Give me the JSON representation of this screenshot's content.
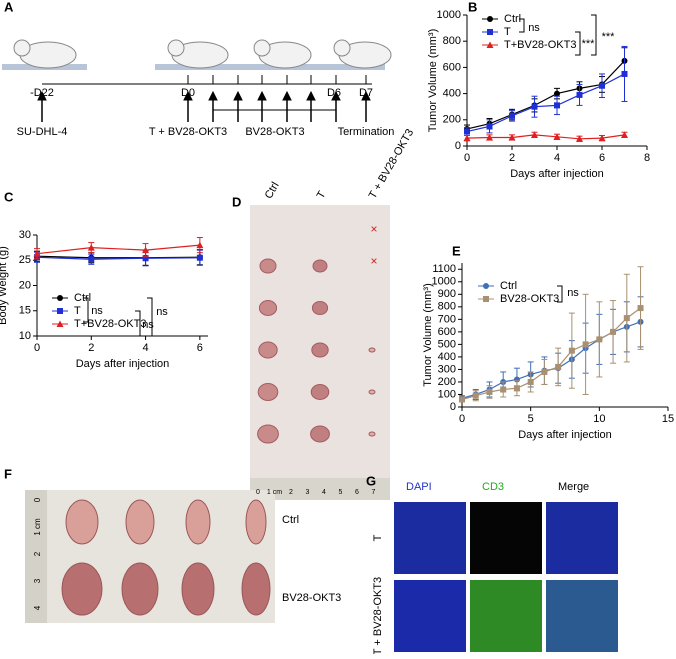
{
  "panel_labels": [
    "A",
    "B",
    "C",
    "D",
    "E",
    "F",
    "G"
  ],
  "schedule": {
    "days": [
      "-D22",
      "D0",
      "D6",
      "D7"
    ],
    "events": [
      "SU-DHL-4",
      "T + BV28-OKT3",
      "BV28-OKT3",
      "Termination"
    ]
  },
  "chart_data": [
    {
      "type": "line",
      "x_label": "Days after injection",
      "y_label": "Tumor Volume (mm³)",
      "xlim": [
        0,
        8
      ],
      "xticks": [
        0,
        2,
        4,
        6,
        8
      ],
      "ylim": [
        0,
        1000
      ],
      "yticks": [
        0,
        200,
        400,
        600,
        800,
        1000
      ],
      "x": [
        0,
        1,
        2,
        3,
        4,
        5,
        6,
        7
      ],
      "series": [
        {
          "name": "Ctrl",
          "color": "#000000",
          "marker": "circle",
          "values": [
            130,
            170,
            240,
            310,
            400,
            440,
            470,
            650
          ],
          "errors": [
            30,
            40,
            40,
            50,
            40,
            50,
            60,
            100
          ]
        },
        {
          "name": "T",
          "color": "#1f2fd6",
          "marker": "square",
          "values": [
            110,
            150,
            230,
            300,
            310,
            390,
            460,
            550
          ],
          "errors": [
            30,
            50,
            40,
            80,
            70,
            80,
            90,
            210
          ]
        },
        {
          "name": "T+BV28-OKT3",
          "color": "#e02020",
          "marker": "triangle",
          "values": [
            60,
            65,
            65,
            85,
            70,
            55,
            60,
            85
          ],
          "errors": [
            20,
            20,
            20,
            20,
            20,
            20,
            20,
            20
          ]
        }
      ],
      "annotations": [
        "ns",
        "***",
        "***"
      ]
    },
    {
      "type": "line",
      "x_label": "Days after injection",
      "y_label": "Body Weight (g)",
      "xlim": [
        0,
        6.3
      ],
      "xticks": [
        0,
        2,
        4,
        6
      ],
      "ylim": [
        10,
        30
      ],
      "yticks": [
        10,
        15,
        20,
        25,
        30
      ],
      "x": [
        0,
        2,
        4,
        6
      ],
      "series": [
        {
          "name": "Ctrl",
          "color": "#000000",
          "marker": "circle",
          "values": [
            25.8,
            25.5,
            25.5,
            25.6
          ],
          "errors": [
            1,
            1,
            1.5,
            1.5
          ]
        },
        {
          "name": "T",
          "color": "#1f2fd6",
          "marker": "square",
          "values": [
            25.6,
            25.2,
            25.4,
            25.5
          ],
          "errors": [
            1,
            1,
            1.5,
            1.5
          ]
        },
        {
          "name": "T+BV28-OKT3",
          "color": "#e02020",
          "marker": "triangle",
          "values": [
            26.3,
            27.5,
            27.0,
            28.0
          ],
          "errors": [
            1,
            1,
            1.3,
            1.5
          ]
        }
      ],
      "annotations": [
        "ns",
        "ns",
        "ns"
      ]
    },
    {
      "type": "line",
      "x_label": "Days after injection",
      "y_label": "Tumor Volume (mm³)",
      "xlim": [
        0,
        15
      ],
      "xticks": [
        0,
        5,
        10,
        15
      ],
      "ylim": [
        0,
        1150
      ],
      "yticks": [
        0,
        100,
        200,
        300,
        400,
        500,
        600,
        700,
        800,
        900,
        1000,
        1100
      ],
      "x": [
        0,
        1,
        2,
        3,
        4,
        5,
        6,
        7,
        8,
        9,
        10,
        11,
        12,
        13
      ],
      "series": [
        {
          "name": "Ctrl",
          "color": "#3f6fb8",
          "marker": "circle",
          "values": [
            70,
            100,
            140,
            200,
            220,
            260,
            290,
            310,
            380,
            470,
            540,
            600,
            640,
            680
          ],
          "errors": [
            20,
            40,
            60,
            80,
            90,
            100,
            110,
            120,
            150,
            200,
            200,
            180,
            200,
            200
          ]
        },
        {
          "name": "BV28-OKT3",
          "color": "#a89070",
          "marker": "square",
          "values": [
            60,
            90,
            120,
            140,
            150,
            200,
            280,
            320,
            450,
            500,
            540,
            600,
            710,
            790
          ],
          "errors": [
            20,
            40,
            50,
            60,
            60,
            80,
            100,
            150,
            300,
            400,
            300,
            250,
            350,
            330
          ]
        }
      ],
      "annotations": [
        "ns"
      ]
    }
  ],
  "photo_d": {
    "columns": [
      "Ctrl",
      "T",
      "T + BV28-OKT3"
    ],
    "ruler": [
      "0",
      "1 cm",
      "2",
      "3",
      "4",
      "5",
      "6",
      "7"
    ]
  },
  "photo_f": {
    "rows": [
      "Ctrl",
      "BV28-OKT3"
    ],
    "ruler": [
      "0",
      "1 cm",
      "2",
      "3",
      "4"
    ]
  },
  "staining": {
    "columns": [
      "DAPI",
      "CD3",
      "Merge"
    ],
    "rows": [
      "T",
      "T + BV28-OKT3"
    ]
  }
}
